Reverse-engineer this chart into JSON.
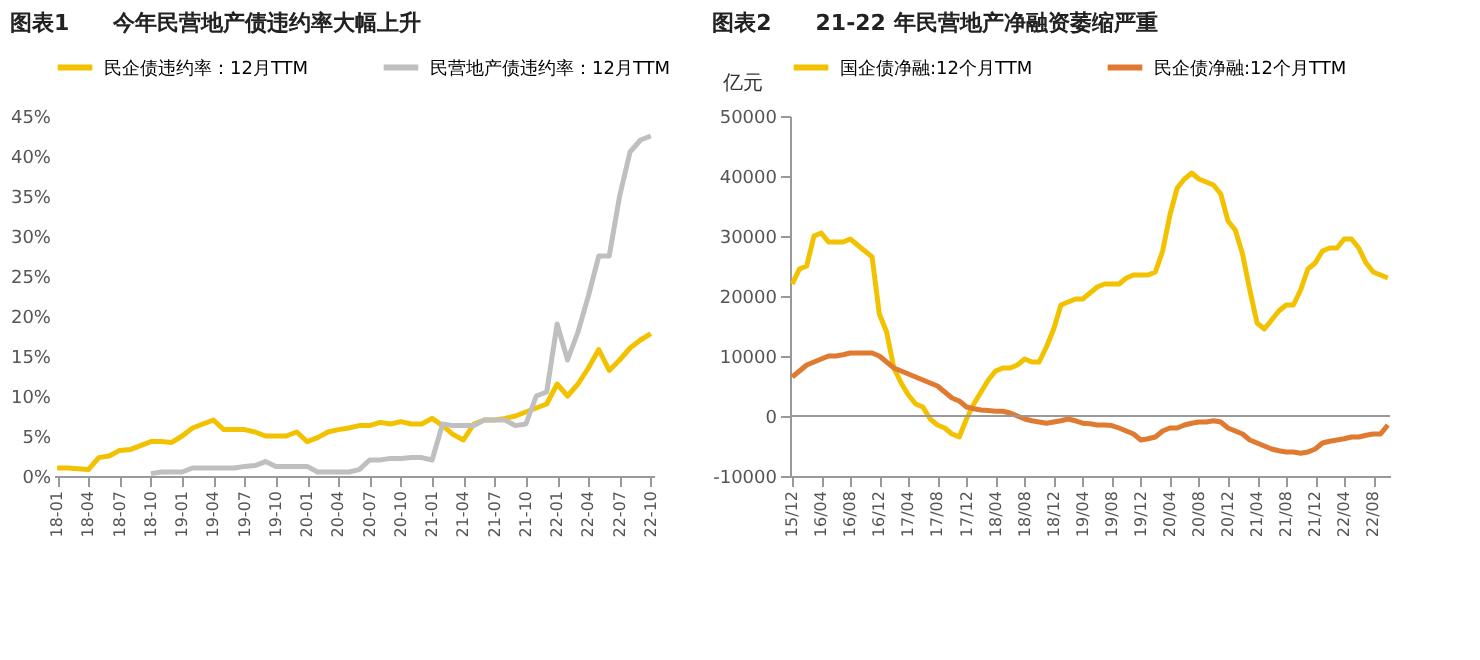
{
  "chart_data": [
    {
      "type": "line",
      "title": "图表1　　今年民营地产债违约率大幅上升",
      "categories": [
        "18-01",
        null,
        null,
        "18-04",
        null,
        null,
        "18-07",
        null,
        null,
        "18-10",
        null,
        null,
        "19-01",
        null,
        null,
        "19-04",
        null,
        null,
        "19-07",
        null,
        null,
        "19-10",
        null,
        null,
        "20-01",
        null,
        null,
        "20-04",
        null,
        null,
        "20-07",
        null,
        null,
        "20-10",
        null,
        null,
        "21-01",
        null,
        null,
        "21-04",
        null,
        null,
        "21-07",
        null,
        null,
        "21-10",
        null,
        null,
        "22-01",
        null,
        null,
        "22-04",
        null,
        null,
        "22-07",
        null,
        null,
        "22-10"
      ],
      "series": [
        {
          "name": "民企债违约率：12月TTM",
          "color": "#f2c200",
          "values": [
            1.0,
            1.0,
            0.9,
            0.8,
            2.3,
            2.5,
            3.2,
            3.3,
            3.8,
            4.3,
            4.3,
            4.2,
            5.0,
            6.0,
            6.5,
            7.0,
            5.8,
            5.8,
            5.8,
            5.5,
            5.0,
            5.0,
            5.0,
            5.5,
            4.3,
            4.8,
            5.5,
            5.8,
            6.0,
            6.3,
            6.3,
            6.7,
            6.5,
            6.8,
            6.5,
            6.5,
            7.2,
            6.3,
            5.2,
            4.5,
            6.5,
            7.0,
            7.0,
            7.2,
            7.5,
            8.0,
            8.5,
            9.0,
            11.5,
            10.0,
            11.5,
            13.5,
            15.8,
            13.2,
            14.5,
            16.0,
            17.0,
            17.8
          ]
        },
        {
          "name": "民营地产债违约率：12月TTM",
          "color": "#bfbfbf",
          "values": [
            null,
            null,
            null,
            null,
            null,
            null,
            null,
            null,
            null,
            0.3,
            0.5,
            0.5,
            0.5,
            1.0,
            1.0,
            1.0,
            1.0,
            1.0,
            1.2,
            1.3,
            1.8,
            1.2,
            1.2,
            1.2,
            1.2,
            0.5,
            0.5,
            0.5,
            0.5,
            0.8,
            2.0,
            2.0,
            2.2,
            2.2,
            2.3,
            2.3,
            2.0,
            6.5,
            6.3,
            6.3,
            6.3,
            7.0,
            7.0,
            7.0,
            6.3,
            6.5,
            10.0,
            10.5,
            19.0,
            14.5,
            18.0,
            22.5,
            27.5,
            27.5,
            35.0,
            40.5,
            42.0,
            42.5
          ]
        }
      ],
      "ylim": [
        0,
        45
      ],
      "yticks": [
        {
          "value": 0,
          "label": "0%"
        },
        {
          "value": 5,
          "label": "5%"
        },
        {
          "value": 10,
          "label": "10%"
        },
        {
          "value": 15,
          "label": "15%"
        },
        {
          "value": 20,
          "label": "20%"
        },
        {
          "value": 25,
          "label": "25%"
        },
        {
          "value": 30,
          "label": "30%"
        },
        {
          "value": 35,
          "label": "35%"
        },
        {
          "value": 40,
          "label": "40%"
        },
        {
          "value": 45,
          "label": "45%"
        }
      ],
      "legend": "top",
      "grid": false
    },
    {
      "type": "line",
      "title": "图表2　　21-22 年民营地产净融资萎缩严重",
      "ylabel": "亿元",
      "categories": [
        "15/12",
        null,
        null,
        null,
        "16/04",
        null,
        null,
        null,
        "16/08",
        null,
        null,
        null,
        "16/12",
        null,
        null,
        null,
        "17/04",
        null,
        null,
        null,
        "17/08",
        null,
        null,
        null,
        "17/12",
        null,
        null,
        null,
        "18/04",
        null,
        null,
        null,
        "18/08",
        null,
        null,
        null,
        "18/12",
        null,
        null,
        null,
        "19/04",
        null,
        null,
        null,
        "19/08",
        null,
        null,
        null,
        "19/12",
        null,
        null,
        null,
        "20/04",
        null,
        null,
        null,
        "20/08",
        null,
        null,
        null,
        "20/12",
        null,
        null,
        null,
        "21/04",
        null,
        null,
        null,
        "21/08",
        null,
        null,
        null,
        "21/12",
        null,
        null,
        null,
        "22/04",
        null,
        null,
        null,
        "22/08",
        null,
        null
      ],
      "series": [
        {
          "name": "国企债净融:12个月TTM",
          "color": "#f2c200",
          "values": [
            22000,
            24500,
            25000,
            30000,
            30500,
            29000,
            29000,
            29000,
            29500,
            28500,
            27500,
            26500,
            17000,
            14000,
            8000,
            5500,
            3500,
            2000,
            1500,
            -500,
            -1500,
            -2000,
            -3000,
            -3500,
            -500,
            2000,
            4000,
            6000,
            7500,
            8000,
            8000,
            8500,
            9500,
            9000,
            9000,
            11500,
            14500,
            18500,
            19000,
            19500,
            19500,
            20500,
            21500,
            22000,
            22000,
            22000,
            23000,
            23500,
            23500,
            23500,
            24000,
            27500,
            33500,
            38000,
            39500,
            40500,
            39500,
            39000,
            38500,
            37000,
            32500,
            31000,
            27000,
            21000,
            15500,
            14500,
            16000,
            17500,
            18500,
            18500,
            21000,
            24500,
            25500,
            27500,
            28000,
            28000,
            29500,
            29500,
            28000,
            25500,
            24000,
            23500,
            23000
          ]
        },
        {
          "name": "民企债净融:12个月TTM",
          "color": "#e07a30",
          "values": [
            6500,
            7500,
            8500,
            9000,
            9500,
            10000,
            10000,
            10200,
            10500,
            10500,
            10500,
            10500,
            10000,
            9000,
            8000,
            7500,
            7000,
            6500,
            6000,
            5500,
            5000,
            4000,
            3000,
            2500,
            1500,
            1200,
            1000,
            900,
            800,
            800,
            500,
            0,
            -500,
            -800,
            -1000,
            -1200,
            -1000,
            -800,
            -500,
            -800,
            -1200,
            -1300,
            -1500,
            -1500,
            -1600,
            -2000,
            -2500,
            -3000,
            -4000,
            -3800,
            -3500,
            -2500,
            -2000,
            -2000,
            -1500,
            -1200,
            -1000,
            -1000,
            -800,
            -1000,
            -2000,
            -2500,
            -3000,
            -4000,
            -4500,
            -5000,
            -5500,
            -5800,
            -6000,
            -6000,
            -6200,
            -6000,
            -5500,
            -4500,
            -4200,
            -4000,
            -3800,
            -3500,
            -3500,
            -3200,
            -3000,
            -3000,
            -1500
          ]
        }
      ],
      "ylim": [
        -10000,
        50000
      ],
      "yticks": [
        -10000,
        0,
        10000,
        20000,
        30000,
        40000,
        50000
      ],
      "ref_lines": [
        {
          "axis": "y",
          "value": 0
        }
      ],
      "legend": "top",
      "grid": false
    }
  ]
}
